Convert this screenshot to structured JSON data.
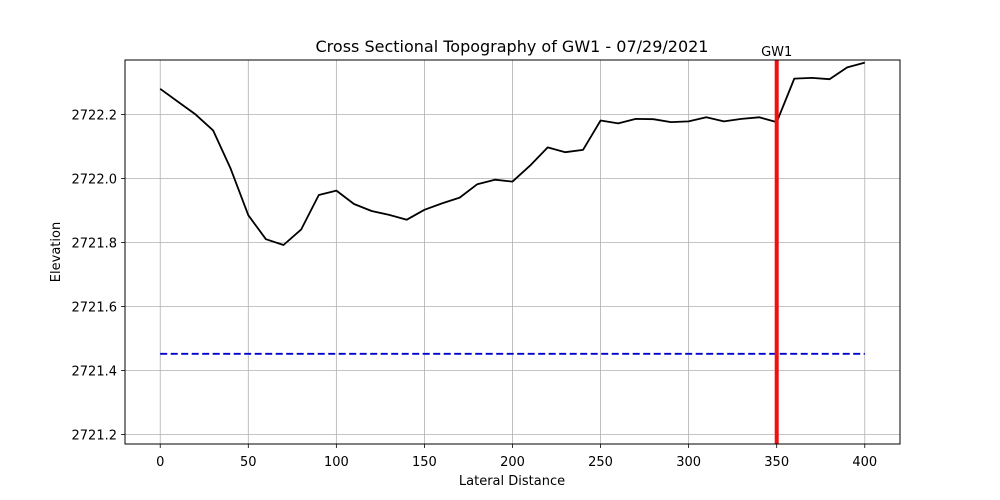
{
  "chart_data": {
    "type": "line",
    "title": "Cross Sectional Topography of GW1 - 07/29/2021",
    "xlabel": "Lateral Distance",
    "ylabel": "Elevation",
    "xlim": [
      -20,
      420
    ],
    "ylim": [
      2721.17,
      2722.37
    ],
    "xticks": [
      0,
      50,
      100,
      150,
      200,
      250,
      300,
      350,
      400
    ],
    "yticks": [
      2721.2,
      2721.4,
      2721.6,
      2721.8,
      2722.0,
      2722.2
    ],
    "grid": true,
    "series": [
      {
        "color": "#000000",
        "style": "solid",
        "x": [
          0,
          10,
          20,
          30,
          40,
          50,
          60,
          70,
          80,
          90,
          100,
          110,
          120,
          130,
          140,
          150,
          160,
          170,
          180,
          190,
          200,
          210,
          220,
          230,
          240,
          250,
          260,
          270,
          280,
          290,
          300,
          310,
          320,
          330,
          340,
          350,
          360,
          370,
          380,
          390,
          400
        ],
        "y": [
          2722.28,
          2722.24,
          2722.2,
          2722.15,
          2722.03,
          2721.885,
          2721.81,
          2721.792,
          2721.84,
          2721.948,
          2721.962,
          2721.92,
          2721.898,
          2721.886,
          2721.871,
          2721.902,
          2721.922,
          2721.94,
          2721.982,
          2721.996,
          2721.99,
          2722.04,
          2722.097,
          2722.082,
          2722.089,
          2722.181,
          2722.172,
          2722.186,
          2722.185,
          2722.176,
          2722.178,
          2722.191,
          2722.178,
          2722.186,
          2722.191,
          2722.176,
          2722.312,
          2722.314,
          2722.31,
          2722.347,
          2722.362
        ]
      },
      {
        "color": "#0000cc",
        "style": "dashed",
        "x": [
          0,
          400
        ],
        "y": [
          2721.452,
          2721.452
        ]
      }
    ],
    "vline": {
      "x": 350,
      "color": "#ee1111",
      "label": "GW1"
    }
  }
}
